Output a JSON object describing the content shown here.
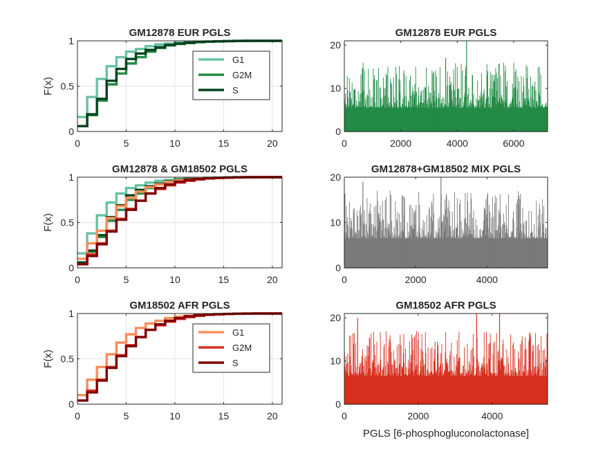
{
  "chart_data": [
    {
      "type": "line",
      "subtype": "ecdf-step",
      "title": "GM12878 EUR PGLS",
      "xlabel": "",
      "ylabel": "F(x)",
      "xlim": [
        0,
        21
      ],
      "ylim": [
        0,
        1
      ],
      "xticks": [
        "0",
        "5",
        "10",
        "15",
        "20"
      ],
      "yticks": [
        "0",
        "0.5",
        "1"
      ],
      "grid": true,
      "legend": "top-right",
      "x": [
        0,
        1,
        2,
        3,
        4,
        5,
        6,
        7,
        8,
        9,
        10,
        11,
        12,
        13,
        14,
        15,
        16,
        17,
        18,
        19,
        20,
        21
      ],
      "series": [
        {
          "name": "G1",
          "color": "#66c2a4",
          "values": [
            0.16,
            0.38,
            0.58,
            0.72,
            0.82,
            0.88,
            0.91,
            0.94,
            0.96,
            0.97,
            0.98,
            0.985,
            0.99,
            0.993,
            0.996,
            0.998,
            0.999,
            1,
            1,
            1,
            1,
            1
          ]
        },
        {
          "name": "G2M",
          "color": "#238b45",
          "values": [
            0.06,
            0.18,
            0.34,
            0.52,
            0.64,
            0.75,
            0.82,
            0.88,
            0.92,
            0.95,
            0.965,
            0.975,
            0.985,
            0.99,
            0.993,
            0.996,
            0.998,
            0.999,
            1,
            1,
            1,
            1
          ]
        },
        {
          "name": "S",
          "color": "#00441b",
          "values": [
            0.06,
            0.19,
            0.36,
            0.56,
            0.69,
            0.8,
            0.86,
            0.9,
            0.93,
            0.955,
            0.97,
            0.98,
            0.987,
            0.992,
            0.995,
            0.997,
            0.999,
            1,
            1,
            1,
            1,
            1
          ]
        }
      ]
    },
    {
      "type": "bar",
      "subtype": "spike-profile",
      "title": "GM12878 EUR PGLS",
      "xlabel": "",
      "ylabel": "",
      "xlim": [
        0,
        7200
      ],
      "ylim": [
        0,
        21
      ],
      "xticks": [
        "0",
        "2000",
        "4000",
        "6000"
      ],
      "yticks": [
        "0",
        "10",
        "20"
      ],
      "grid": false,
      "color": "#238b45",
      "baseline_level": 5.5,
      "notable_peaks": [
        {
          "x": 4330,
          "y": 21
        },
        {
          "x": 3590,
          "y": 17
        }
      ]
    },
    {
      "type": "line",
      "subtype": "ecdf-step",
      "title": "GM12878 & GM18502 PGLS",
      "xlabel": "",
      "ylabel": "F(x)",
      "xlim": [
        0,
        21
      ],
      "ylim": [
        0,
        1
      ],
      "xticks": [
        "0",
        "5",
        "10",
        "15",
        "20"
      ],
      "yticks": [
        "0",
        "0.5",
        "1"
      ],
      "grid": true,
      "legend": "none",
      "x": [
        0,
        1,
        2,
        3,
        4,
        5,
        6,
        7,
        8,
        9,
        10,
        11,
        12,
        13,
        14,
        15,
        16,
        17,
        18,
        19,
        20,
        21
      ],
      "series": [
        {
          "name": "",
          "color": "#66c2a4",
          "values": [
            0.16,
            0.38,
            0.58,
            0.72,
            0.82,
            0.88,
            0.91,
            0.94,
            0.96,
            0.97,
            0.98,
            0.985,
            0.99,
            0.993,
            0.996,
            0.998,
            0.999,
            1,
            1,
            1,
            1,
            1
          ]
        },
        {
          "name": "",
          "color": "#238b45",
          "values": [
            0.06,
            0.18,
            0.34,
            0.52,
            0.64,
            0.75,
            0.82,
            0.88,
            0.92,
            0.95,
            0.965,
            0.975,
            0.985,
            0.99,
            0.993,
            0.996,
            0.998,
            0.999,
            1,
            1,
            1,
            1
          ]
        },
        {
          "name": "",
          "color": "#00441b",
          "values": [
            0.06,
            0.19,
            0.36,
            0.56,
            0.69,
            0.8,
            0.86,
            0.9,
            0.93,
            0.955,
            0.97,
            0.98,
            0.987,
            0.992,
            0.995,
            0.997,
            0.999,
            1,
            1,
            1,
            1,
            1
          ]
        },
        {
          "name": "",
          "color": "#fc8d59",
          "values": [
            0.1,
            0.27,
            0.41,
            0.55,
            0.68,
            0.77,
            0.84,
            0.89,
            0.92,
            0.95,
            0.965,
            0.975,
            0.983,
            0.99,
            0.993,
            0.996,
            0.998,
            0.999,
            1,
            1,
            1,
            1
          ]
        },
        {
          "name": "",
          "color": "#d7301f",
          "values": [
            0.04,
            0.15,
            0.27,
            0.41,
            0.54,
            0.65,
            0.74,
            0.82,
            0.87,
            0.91,
            0.94,
            0.96,
            0.975,
            0.985,
            0.99,
            0.994,
            0.997,
            0.999,
            1,
            1,
            1,
            1
          ]
        },
        {
          "name": "",
          "color": "#7f0000",
          "values": [
            0.04,
            0.13,
            0.26,
            0.4,
            0.53,
            0.64,
            0.74,
            0.82,
            0.88,
            0.92,
            0.95,
            0.97,
            0.98,
            0.988,
            0.993,
            0.996,
            0.998,
            0.999,
            1,
            1,
            1,
            1
          ]
        }
      ]
    },
    {
      "type": "bar",
      "subtype": "spike-profile",
      "title": "GM12878+GM18502 MIX PGLS",
      "xlabel": "",
      "ylabel": "",
      "xlim": [
        0,
        5700
      ],
      "ylim": [
        0,
        20
      ],
      "xticks": [
        "0",
        "2000",
        "4000"
      ],
      "yticks": [
        "0",
        "10",
        "20"
      ],
      "grid": false,
      "color": "#7a7a7a",
      "baseline_level": 6.5,
      "notable_peaks": [
        {
          "x": 520,
          "y": 19
        },
        {
          "x": 2710,
          "y": 20
        },
        {
          "x": 4010,
          "y": 16
        }
      ]
    },
    {
      "type": "line",
      "subtype": "ecdf-step",
      "title": "GM18502 AFR PGLS",
      "xlabel": "",
      "ylabel": "F(x)",
      "xlim": [
        0,
        21
      ],
      "ylim": [
        0,
        1
      ],
      "xticks": [
        "0",
        "5",
        "10",
        "15",
        "20"
      ],
      "yticks": [
        "0",
        "0.5",
        "1"
      ],
      "grid": true,
      "legend": "top-right",
      "x": [
        0,
        1,
        2,
        3,
        4,
        5,
        6,
        7,
        8,
        9,
        10,
        11,
        12,
        13,
        14,
        15,
        16,
        17,
        18,
        19,
        20,
        21
      ],
      "series": [
        {
          "name": "G1",
          "color": "#fc8d59",
          "values": [
            0.1,
            0.27,
            0.41,
            0.55,
            0.68,
            0.77,
            0.84,
            0.89,
            0.92,
            0.95,
            0.965,
            0.975,
            0.983,
            0.99,
            0.993,
            0.996,
            0.998,
            0.999,
            1,
            1,
            1,
            1
          ]
        },
        {
          "name": "G2M",
          "color": "#d7301f",
          "values": [
            0.04,
            0.15,
            0.27,
            0.41,
            0.54,
            0.65,
            0.74,
            0.82,
            0.87,
            0.91,
            0.94,
            0.96,
            0.975,
            0.985,
            0.99,
            0.994,
            0.997,
            0.999,
            1,
            1,
            1,
            1
          ]
        },
        {
          "name": "S",
          "color": "#7f0000",
          "values": [
            0.04,
            0.13,
            0.26,
            0.4,
            0.53,
            0.64,
            0.74,
            0.82,
            0.88,
            0.92,
            0.95,
            0.97,
            0.98,
            0.988,
            0.993,
            0.996,
            0.998,
            0.999,
            1,
            1,
            1,
            1
          ]
        }
      ]
    },
    {
      "type": "bar",
      "subtype": "spike-profile",
      "title": "GM18502 AFR PGLS",
      "xlabel": "PGLS [6-phosphogluconolactonase]",
      "ylabel": "",
      "xlim": [
        0,
        5500
      ],
      "ylim": [
        0,
        21
      ],
      "xticks": [
        "0",
        "2000",
        "4000"
      ],
      "yticks": [
        "0",
        "10",
        "20"
      ],
      "grid": false,
      "color": "#d7301f",
      "baseline_level": 6.5,
      "notable_peaks": [
        {
          "x": 360,
          "y": 20
        },
        {
          "x": 3580,
          "y": 21
        },
        {
          "x": 4200,
          "y": 21
        }
      ]
    }
  ]
}
